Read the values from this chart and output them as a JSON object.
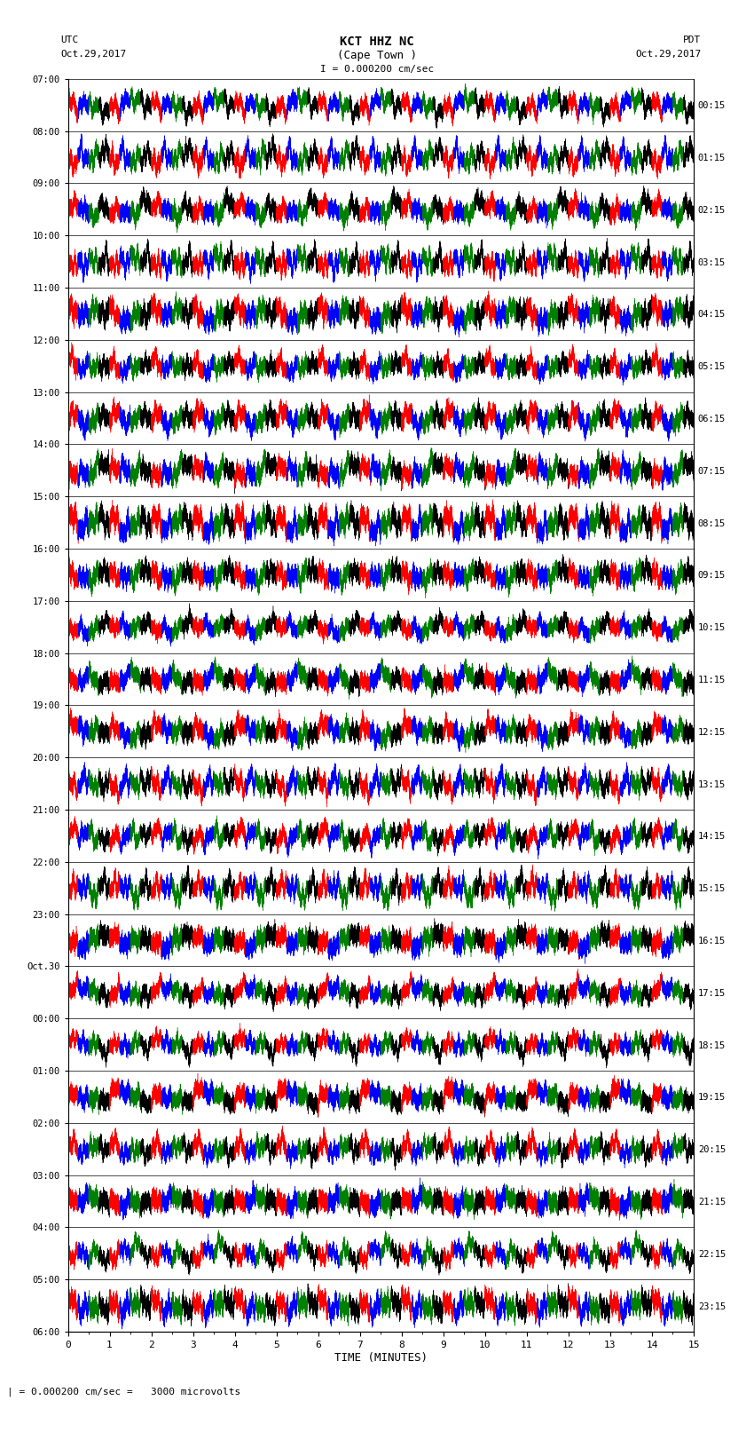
{
  "title_line1": "KCT HHZ NC",
  "title_line2": "(Cape Town )",
  "scale_label": "I = 0.000200 cm/sec",
  "bottom_label": "| = 0.000200 cm/sec =   3000 microvolts",
  "xlabel": "TIME (MINUTES)",
  "left_header": "UTC",
  "left_date": "Oct.29,2017",
  "right_header": "PDT",
  "right_date": "Oct.29,2017",
  "utc_times": [
    "07:00",
    "08:00",
    "09:00",
    "10:00",
    "11:00",
    "12:00",
    "13:00",
    "14:00",
    "15:00",
    "16:00",
    "17:00",
    "18:00",
    "19:00",
    "20:00",
    "21:00",
    "22:00",
    "23:00",
    "Oct.30",
    "00:00",
    "01:00",
    "02:00",
    "03:00",
    "04:00",
    "05:00",
    "06:00"
  ],
  "pdt_times": [
    "00:15",
    "01:15",
    "02:15",
    "03:15",
    "04:15",
    "05:15",
    "06:15",
    "07:15",
    "08:15",
    "09:15",
    "10:15",
    "11:15",
    "12:15",
    "13:15",
    "14:15",
    "15:15",
    "16:15",
    "17:15",
    "18:15",
    "19:15",
    "20:15",
    "21:15",
    "22:15",
    "23:15"
  ],
  "n_rows": 24,
  "n_minutes": 15,
  "sample_rate": 100,
  "colors": [
    "red",
    "blue",
    "green",
    "black"
  ],
  "background": "white",
  "line_width": 0.3,
  "amplitude": 0.45,
  "fig_width": 8.5,
  "fig_height": 16.13
}
